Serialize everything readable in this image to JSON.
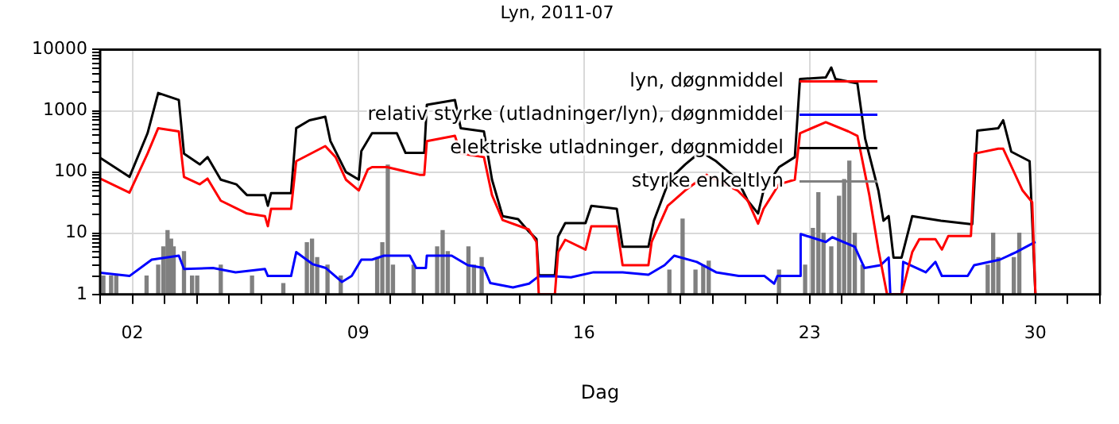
{
  "chart_data": {
    "type": "line",
    "title": "Lyn, 2011-07",
    "xlabel": "Dag",
    "log": "y",
    "grid": true,
    "legend": "top right",
    "marker": "none",
    "xlim": [
      1,
      32
    ],
    "xticks": [
      {
        "value": 1,
        "label": null
      },
      {
        "value": 2,
        "label": "02"
      },
      {
        "value": 3,
        "label": null
      },
      {
        "value": 4,
        "label": null
      },
      {
        "value": 5,
        "label": null
      },
      {
        "value": 6,
        "label": null
      },
      {
        "value": 7,
        "label": null
      },
      {
        "value": 8,
        "label": null
      },
      {
        "value": 9,
        "label": "09"
      },
      {
        "value": 10,
        "label": null
      },
      {
        "value": 11,
        "label": null
      },
      {
        "value": 12,
        "label": null
      },
      {
        "value": 13,
        "label": null
      },
      {
        "value": 14,
        "label": null
      },
      {
        "value": 15,
        "label": null
      },
      {
        "value": 16,
        "label": "16"
      },
      {
        "value": 17,
        "label": null
      },
      {
        "value": 18,
        "label": null
      },
      {
        "value": 19,
        "label": null
      },
      {
        "value": 20,
        "label": null
      },
      {
        "value": 21,
        "label": null
      },
      {
        "value": 22,
        "label": null
      },
      {
        "value": 23,
        "label": "23"
      },
      {
        "value": 24,
        "label": null
      },
      {
        "value": 25,
        "label": null
      },
      {
        "value": 26,
        "label": null
      },
      {
        "value": 27,
        "label": null
      },
      {
        "value": 28,
        "label": null
      },
      {
        "value": 29,
        "label": null
      },
      {
        "value": 30,
        "label": "30"
      },
      {
        "value": 31,
        "label": null
      },
      {
        "value": 32,
        "label": null
      }
    ],
    "ylim": [
      1,
      10000
    ],
    "yticks": [
      1,
      {
        "value": 2,
        "label": null
      },
      {
        "value": 3,
        "label": null
      },
      {
        "value": 4,
        "label": null
      },
      {
        "value": 5,
        "label": null
      },
      {
        "value": 6,
        "label": null
      },
      {
        "value": 7,
        "label": null
      },
      {
        "value": 8,
        "label": null
      },
      {
        "value": 9,
        "label": null
      },
      10,
      {
        "value": 20,
        "label": null
      },
      {
        "value": 30,
        "label": null
      },
      {
        "value": 40,
        "label": null
      },
      {
        "value": 50,
        "label": null
      },
      {
        "value": 60,
        "label": null
      },
      {
        "value": 70,
        "label": null
      },
      {
        "value": 80,
        "label": null
      },
      {
        "value": 90,
        "label": null
      },
      100,
      {
        "value": 200,
        "label": null
      },
      {
        "value": 300,
        "label": null
      },
      {
        "value": 400,
        "label": null
      },
      {
        "value": 500,
        "label": null
      },
      {
        "value": 600,
        "label": null
      },
      {
        "value": 700,
        "label": null
      },
      {
        "value": 800,
        "label": null
      },
      {
        "value": 900,
        "label": null
      },
      1000,
      {
        "value": 2000,
        "label": null
      },
      {
        "value": 3000,
        "label": null
      },
      {
        "value": 4000,
        "label": null
      },
      {
        "value": 5000,
        "label": null
      },
      {
        "value": 6000,
        "label": null
      },
      {
        "value": 7000,
        "label": null
      },
      {
        "value": 8000,
        "label": null
      },
      {
        "value": 9000,
        "label": null
      },
      10000
    ],
    "series": [
      {
        "name": "lyn, døgnmiddel",
        "color": "#ff0000",
        "x": [
          1.0,
          1.91,
          2.47,
          2.8,
          3.44,
          3.6,
          4.09,
          4.33,
          4.74,
          5.55,
          6.11,
          6.2,
          6.3,
          6.92,
          7.08,
          7.98,
          8.3,
          8.62,
          9.02,
          9.3,
          9.43,
          9.9,
          10.9,
          11.05,
          11.13,
          12.0,
          12.18,
          12.9,
          13.15,
          13.48,
          14.29,
          14.53,
          14.6,
          15.1,
          15.2,
          15.42,
          16.05,
          16.23,
          17.02,
          17.2,
          18.0,
          18.1,
          18.6,
          19.14,
          19.8,
          20.76,
          21.08,
          21.4,
          21.57,
          22.05,
          22.54,
          22.7,
          23.5,
          24.2,
          24.48,
          24.85,
          25.13,
          25.4,
          25.85,
          26.18,
          26.4,
          26.9,
          27.1,
          27.3,
          28.0,
          28.12,
          28.85,
          29.0,
          29.6,
          29.9,
          30.0
        ],
        "values": [
          78,
          46,
          200,
          520,
          460,
          83,
          63,
          78,
          34,
          21,
          19,
          13,
          25,
          25,
          150,
          265,
          175,
          75,
          50,
          110,
          120,
          120,
          90,
          90,
          320,
          390,
          200,
          175,
          42,
          16.4,
          11.5,
          7.2,
          1,
          1,
          4.9,
          7.8,
          5.4,
          13,
          13,
          3,
          3,
          7.2,
          28,
          50,
          90,
          50,
          34,
          14.3,
          25,
          63,
          75,
          430,
          650,
          460,
          390,
          42,
          5.4,
          1,
          1,
          4.9,
          8,
          8,
          5.4,
          9,
          9,
          200,
          240,
          240,
          50,
          32,
          1
        ]
      },
      {
        "name": "relativ styrke (utladninger/lyn), døgnmiddel",
        "color": "#0000ff",
        "x": [
          1.0,
          1.91,
          2.6,
          3.44,
          3.6,
          4.5,
          5.2,
          6.11,
          6.2,
          6.92,
          7.08,
          7.6,
          8.0,
          8.5,
          8.8,
          9.1,
          9.43,
          9.8,
          10.6,
          10.8,
          11.1,
          11.13,
          11.9,
          12.4,
          12.9,
          13.1,
          13.8,
          14.3,
          14.6,
          15.1,
          15.6,
          16.3,
          17.2,
          18.0,
          18.5,
          18.8,
          19.5,
          20.1,
          20.8,
          21.6,
          21.9,
          22.0,
          22.7,
          22.72,
          23.5,
          23.7,
          24.4,
          24.7,
          25.2,
          25.45,
          25.5,
          25.85,
          25.9,
          26.6,
          26.9,
          27.1,
          27.9,
          28.1,
          28.9,
          29.4,
          30.0
        ],
        "values": [
          2.26,
          2.0,
          3.7,
          4.3,
          2.6,
          2.7,
          2.3,
          2.6,
          2.0,
          2.0,
          4.9,
          3.1,
          2.7,
          1.6,
          2.0,
          3.7,
          3.7,
          4.3,
          4.3,
          2.7,
          2.7,
          4.3,
          4.3,
          3.0,
          2.7,
          1.53,
          1.3,
          1.5,
          1.98,
          1.98,
          1.9,
          2.3,
          2.3,
          2.1,
          3.0,
          4.3,
          3.4,
          2.3,
          2.0,
          2.0,
          1.5,
          2.0,
          2.0,
          9.7,
          7.2,
          8.6,
          6,
          2.7,
          3.0,
          4.0,
          1,
          1,
          3.4,
          2.3,
          3.4,
          2.0,
          2.0,
          3.0,
          3.7,
          4.9,
          7.2
        ]
      },
      {
        "name": "elektriske utladninger, døgnmiddel",
        "color": "#000000",
        "x": [
          1.0,
          1.91,
          2.47,
          2.8,
          3.44,
          3.6,
          4.09,
          4.33,
          4.74,
          5.22,
          5.55,
          6.11,
          6.2,
          6.3,
          6.92,
          7.08,
          7.49,
          7.98,
          8.14,
          8.62,
          9.02,
          9.1,
          9.43,
          10.2,
          10.47,
          11.05,
          11.13,
          12.0,
          12.18,
          12.9,
          13.15,
          13.48,
          13.96,
          14.29,
          14.53,
          14.6,
          15.1,
          15.2,
          15.42,
          16.05,
          16.23,
          17.02,
          17.2,
          18.0,
          18.17,
          18.65,
          19.14,
          19.62,
          20.1,
          20.76,
          21.08,
          21.4,
          21.57,
          22.05,
          22.54,
          22.7,
          23.5,
          23.67,
          23.8,
          24.48,
          24.72,
          25.13,
          25.29,
          25.45,
          25.6,
          25.85,
          26.18,
          27.07,
          28.04,
          28.2,
          28.85,
          29.0,
          29.25,
          29.82,
          30.0
        ],
        "values": [
          170,
          83,
          430,
          1950,
          1500,
          200,
          133,
          175,
          75,
          63,
          42,
          42,
          28,
          45,
          45,
          520,
          700,
          800,
          320,
          100,
          75,
          220,
          430,
          430,
          205,
          205,
          1250,
          1500,
          520,
          460,
          75,
          19,
          17,
          10.7,
          8,
          2.05,
          2.05,
          8.8,
          14.6,
          14.6,
          28,
          25,
          6,
          6,
          16,
          75,
          133,
          215,
          150,
          75,
          34,
          21,
          50,
          120,
          175,
          3300,
          3500,
          5100,
          3300,
          2800,
          350,
          50,
          16,
          19,
          4,
          4,
          19,
          16,
          14,
          475,
          520,
          700,
          215,
          150,
          1
        ]
      },
      {
        "name": "styrke enkeltlyn",
        "type": "bar",
        "color": "#808080",
        "x": [
          1.1,
          1.34,
          1.5,
          2.44,
          2.8,
          2.96,
          3.09,
          3.2,
          3.28,
          3.6,
          3.85,
          4.01,
          4.74,
          5.71,
          6.68,
          7.41,
          7.57,
          7.73,
          8.05,
          8.46,
          9.59,
          9.75,
          9.92,
          10.08,
          10.72,
          11.45,
          11.62,
          11.78,
          12.42,
          12.59,
          12.83,
          18.65,
          19.06,
          19.46,
          19.7,
          19.87,
          22.05,
          22.86,
          23.1,
          23.27,
          23.43,
          23.67,
          23.91,
          24.07,
          24.23,
          24.4,
          24.64,
          28.52,
          28.69,
          28.85,
          29.33,
          29.5
        ],
        "values": [
          2,
          2,
          2,
          2,
          3,
          6,
          11,
          8,
          6,
          5,
          2,
          2,
          3,
          2,
          1.5,
          7,
          8,
          4,
          3,
          2,
          4,
          7,
          130,
          3,
          3,
          6,
          11,
          5,
          6,
          3,
          4,
          2.5,
          17,
          2.5,
          3,
          3.5,
          2.5,
          3,
          12,
          46,
          10,
          6,
          40,
          75,
          150,
          10,
          3,
          3,
          10,
          4,
          4,
          10
        ]
      }
    ]
  }
}
